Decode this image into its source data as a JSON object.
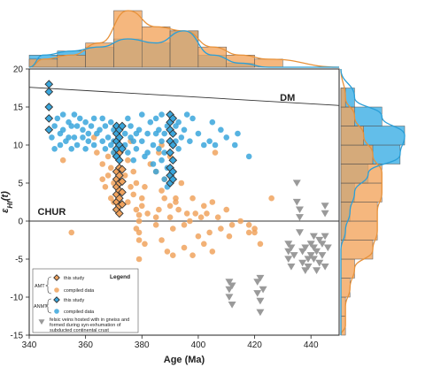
{
  "colors": {
    "orange": "#f0a35e",
    "orange_stroke": "#d98a3f",
    "blue": "#3aa6dc",
    "blue_stroke": "#1e86bf",
    "gray": "#9a9a9a",
    "hist_orange": "#f2a55e",
    "hist_blue": "#46b3e6",
    "curve_orange": "#e8923a",
    "curve_blue": "#2a9fd8"
  },
  "chart_data": {
    "type": "scatter",
    "xlabel": "Age (Ma)",
    "ylabel": "εHf(t)",
    "xlim": [
      340,
      450
    ],
    "ylim": [
      -15,
      20
    ],
    "x_ticks": [
      340,
      360,
      380,
      400,
      420,
      440
    ],
    "y_ticks": [
      -15,
      -10,
      -5,
      0,
      5,
      10,
      15,
      20
    ],
    "grid": false,
    "reference_lines": [
      {
        "label": "DM",
        "x": [
          340,
          450
        ],
        "y": [
          17.6,
          15.2
        ]
      },
      {
        "label": "CHUR",
        "x": [
          340,
          450
        ],
        "y": [
          0,
          0
        ]
      }
    ],
    "legend": {
      "title": "Legend",
      "placement": "bottom-left",
      "groups": [
        {
          "group": "AMT",
          "entries": [
            "this study",
            "compiled data"
          ]
        },
        {
          "group": "ANMT",
          "entries": [
            "this study",
            "compiled data"
          ]
        }
      ],
      "note": "felsic veins hosted with in gneiss and formed during syn-exhumation of subducted continental crust"
    },
    "series": [
      {
        "name": "AMT this study",
        "marker": "diamond",
        "color": "orange",
        "points": [
          [
            371,
            1.5
          ],
          [
            371,
            2.5
          ],
          [
            371,
            3.5
          ],
          [
            371,
            4.5
          ],
          [
            371,
            5.5
          ],
          [
            371,
            6.5
          ],
          [
            371,
            8.5
          ],
          [
            372,
            1.0
          ],
          [
            372,
            2.0
          ],
          [
            372,
            3.0
          ],
          [
            372,
            4.0
          ],
          [
            372,
            5.0
          ],
          [
            372,
            6.0
          ],
          [
            372,
            7.0
          ],
          [
            372,
            9.0
          ],
          [
            373,
            2.2
          ],
          [
            373,
            3.8
          ],
          [
            373,
            5.2
          ],
          [
            373,
            6.8
          ]
        ]
      },
      {
        "name": "AMT compiled data",
        "marker": "circle",
        "color": "orange",
        "points": [
          [
            366,
            7.5
          ],
          [
            366,
            5.5
          ],
          [
            367,
            4.5
          ],
          [
            368,
            6.0
          ],
          [
            368,
            8.5
          ],
          [
            369,
            3.0
          ],
          [
            369,
            7.0
          ],
          [
            370,
            2.5
          ],
          [
            370,
            5.0
          ],
          [
            370,
            9.0
          ],
          [
            374,
            6.0
          ],
          [
            375,
            8.0
          ],
          [
            375,
            2.5
          ],
          [
            376,
            4.5
          ],
          [
            376,
            10.5
          ],
          [
            377,
            3.5
          ],
          [
            377,
            6.5
          ],
          [
            378,
            1.5
          ],
          [
            378,
            -1.0
          ],
          [
            378,
            5.0
          ],
          [
            379,
            0.0
          ],
          [
            379,
            -2.5
          ],
          [
            379,
            -5.0
          ],
          [
            379,
            -1.5
          ],
          [
            379,
            0.8
          ],
          [
            380,
            2.0
          ],
          [
            380,
            3.0
          ],
          [
            381,
            4.5
          ],
          [
            381,
            -3.0
          ],
          [
            382,
            1.0
          ],
          [
            383,
            7.5
          ],
          [
            385,
            0.5
          ],
          [
            385,
            6.5
          ],
          [
            385,
            -0.5
          ],
          [
            386,
            1.5
          ],
          [
            386,
            9.0
          ],
          [
            387,
            4.0
          ],
          [
            387,
            -2.5
          ],
          [
            387,
            10.0
          ],
          [
            388,
            3.0
          ],
          [
            388,
            5.5
          ],
          [
            389,
            -4.0
          ],
          [
            390,
            2.0
          ],
          [
            390,
            0.5
          ],
          [
            390,
            8.5
          ],
          [
            391,
            -4.5
          ],
          [
            391,
            -1.0
          ],
          [
            392,
            2.5
          ],
          [
            392,
            3.0
          ],
          [
            393,
            1.5
          ],
          [
            394,
            5.0
          ],
          [
            395,
            -0.5
          ],
          [
            395,
            -3.5
          ],
          [
            396,
            1.0
          ],
          [
            397,
            0.0
          ],
          [
            398,
            3.0
          ],
          [
            398,
            -4.5
          ],
          [
            399,
            1.0
          ],
          [
            400,
            -2.0
          ],
          [
            401,
            0.5
          ],
          [
            402,
            2.0
          ],
          [
            402,
            -3.0
          ],
          [
            403,
            1.0
          ],
          [
            404,
            -1.5
          ],
          [
            405,
            -4.0
          ],
          [
            405,
            2.5
          ],
          [
            406,
            9.0
          ],
          [
            407,
            0.5
          ],
          [
            408,
            -1.0
          ],
          [
            410,
            1.5
          ],
          [
            411,
            -2.0
          ],
          [
            412,
            -0.5
          ],
          [
            415,
            0.0
          ],
          [
            418,
            -0.5
          ],
          [
            418,
            -1.5
          ],
          [
            420,
            -1.5
          ],
          [
            420,
            -1.0
          ],
          [
            422,
            -3.0
          ],
          [
            426,
            3.0
          ],
          [
            355,
            -1.5
          ],
          [
            352,
            8.0
          ],
          [
            363,
            11.0
          ],
          [
            364,
            9.0
          ]
        ]
      },
      {
        "name": "ANMT this study",
        "marker": "diamond",
        "color": "blue",
        "points": [
          [
            347,
            18.0
          ],
          [
            347,
            17.0
          ],
          [
            347,
            15.0
          ],
          [
            347,
            13.5
          ],
          [
            347,
            12.0
          ],
          [
            371,
            12.5
          ],
          [
            371,
            11.5
          ],
          [
            371,
            10.5
          ],
          [
            371,
            9.5
          ],
          [
            371,
            8.5
          ],
          [
            372,
            12.0
          ],
          [
            372,
            11.0
          ],
          [
            372,
            10.0
          ],
          [
            372,
            8.0
          ],
          [
            373,
            12.5
          ],
          [
            373,
            9.5
          ],
          [
            390,
            14.0
          ],
          [
            390,
            13.0
          ],
          [
            390,
            12.0
          ],
          [
            390,
            10.5
          ],
          [
            390,
            9.0
          ],
          [
            390,
            7.0
          ],
          [
            390,
            6.0
          ],
          [
            390,
            5.0
          ],
          [
            391,
            13.5
          ],
          [
            391,
            11.5
          ],
          [
            391,
            10.0
          ],
          [
            391,
            8.0
          ],
          [
            391,
            6.5
          ],
          [
            391,
            5.5
          ]
        ]
      },
      {
        "name": "ANMT compiled data",
        "marker": "circle",
        "color": "blue",
        "points": [
          [
            348,
            11.0
          ],
          [
            349,
            12.5
          ],
          [
            349,
            9.5
          ],
          [
            350,
            13.5
          ],
          [
            351,
            11.5
          ],
          [
            351,
            10.0
          ],
          [
            352,
            12.0
          ],
          [
            352,
            14.0
          ],
          [
            353,
            10.5
          ],
          [
            354,
            13.0
          ],
          [
            354,
            11.0
          ],
          [
            355,
            12.5
          ],
          [
            355,
            9.5
          ],
          [
            356,
            11.0
          ],
          [
            356,
            14.0
          ],
          [
            357,
            12.5
          ],
          [
            357,
            10.0
          ],
          [
            358,
            13.5
          ],
          [
            359,
            11.0
          ],
          [
            359,
            12.0
          ],
          [
            360,
            9.5
          ],
          [
            360,
            13.0
          ],
          [
            361,
            11.5
          ],
          [
            361,
            10.5
          ],
          [
            362,
            12.5
          ],
          [
            363,
            10.0
          ],
          [
            363,
            13.5
          ],
          [
            364,
            11.5
          ],
          [
            365,
            12.0
          ],
          [
            366,
            13.5
          ],
          [
            366,
            10.5
          ],
          [
            367,
            9.5
          ],
          [
            367,
            12.5
          ],
          [
            368,
            11.0
          ],
          [
            369,
            10.0
          ],
          [
            369,
            13.0
          ],
          [
            370,
            12.0
          ],
          [
            370,
            10.5
          ],
          [
            370,
            9.0
          ],
          [
            374,
            11.5
          ],
          [
            374,
            10.0
          ],
          [
            375,
            13.5
          ],
          [
            375,
            9.0
          ],
          [
            376,
            11.0
          ],
          [
            376,
            12.5
          ],
          [
            377,
            10.5
          ],
          [
            377,
            8.0
          ],
          [
            378,
            11.5
          ],
          [
            378,
            9.5
          ],
          [
            379,
            12.0
          ],
          [
            380,
            10.5
          ],
          [
            380,
            14.0
          ],
          [
            381,
            8.5
          ],
          [
            382,
            11.5
          ],
          [
            382,
            9.0
          ],
          [
            383,
            13.0
          ],
          [
            384,
            10.0
          ],
          [
            384,
            7.5
          ],
          [
            385,
            11.5
          ],
          [
            385,
            13.5
          ],
          [
            385,
            6.5
          ],
          [
            386,
            9.5
          ],
          [
            386,
            12.0
          ],
          [
            387,
            10.5
          ],
          [
            387,
            8.0
          ],
          [
            387,
            14.0
          ],
          [
            388,
            11.5
          ],
          [
            388,
            9.0
          ],
          [
            388,
            5.5
          ],
          [
            389,
            12.5
          ],
          [
            389,
            7.0
          ],
          [
            389,
            4.5
          ],
          [
            392,
            10.5
          ],
          [
            392,
            12.5
          ],
          [
            393,
            9.5
          ],
          [
            393,
            13.0
          ],
          [
            394,
            11.0
          ],
          [
            395,
            12.0
          ],
          [
            396,
            14.0
          ],
          [
            397,
            10.5
          ],
          [
            398,
            13.5
          ],
          [
            400,
            11.5
          ],
          [
            402,
            10.0
          ],
          [
            404,
            10.5
          ],
          [
            405,
            13.0
          ],
          [
            406,
            10.0
          ],
          [
            408,
            12.0
          ],
          [
            410,
            11.0
          ],
          [
            413,
            10.0
          ],
          [
            414,
            11.5
          ],
          [
            418,
            8.5
          ]
        ]
      },
      {
        "name": "felsic veins",
        "marker": "triangle-down",
        "color": "gray",
        "points": [
          [
            411,
            -8.0
          ],
          [
            411,
            -9.0
          ],
          [
            411,
            -10.0
          ],
          [
            412,
            -8.5
          ],
          [
            412,
            -11.0
          ],
          [
            421,
            -8.0
          ],
          [
            421,
            -9.5
          ],
          [
            422,
            -7.5
          ],
          [
            422,
            -10.5
          ],
          [
            422,
            -12.0
          ],
          [
            423,
            -9.0
          ],
          [
            432,
            -3.0
          ],
          [
            432,
            -4.0
          ],
          [
            432,
            -5.0
          ],
          [
            433,
            -3.5
          ],
          [
            433,
            -6.0
          ],
          [
            434,
            -4.5
          ],
          [
            437,
            -4.0
          ],
          [
            437,
            -5.5
          ],
          [
            438,
            -3.5
          ],
          [
            438,
            -6.5
          ],
          [
            439,
            -5.0
          ],
          [
            439,
            -6.0
          ],
          [
            440,
            -3.0
          ],
          [
            440,
            -4.5
          ],
          [
            441,
            -2.0
          ],
          [
            441,
            -3.5
          ],
          [
            441,
            -5.0
          ],
          [
            442,
            -4.0
          ],
          [
            442,
            -6.5
          ],
          [
            443,
            -2.5
          ],
          [
            443,
            -5.5
          ],
          [
            444,
            -3.0
          ],
          [
            444,
            -4.5
          ],
          [
            445,
            -2.0
          ],
          [
            445,
            -6.0
          ],
          [
            446,
            -3.5
          ],
          [
            445,
            1.0
          ],
          [
            445,
            2.0
          ],
          [
            436,
            0.5
          ],
          [
            436,
            1.5
          ],
          [
            435,
            2.5
          ],
          [
            435,
            5.0
          ],
          [
            436,
            -1.5
          ]
        ]
      }
    ],
    "marginal_top": {
      "type": "histogram",
      "bins_age": [
        340,
        350,
        360,
        370,
        380,
        390,
        400,
        410,
        420,
        430
      ],
      "orange_counts": [
        2,
        3,
        6,
        14,
        10,
        9,
        5,
        3,
        2
      ],
      "blue_counts": [
        3,
        4,
        5,
        7,
        6,
        9,
        3,
        1,
        0
      ]
    },
    "marginal_right": {
      "type": "histogram",
      "bins_ehf": [
        -15,
        -12.5,
        -10,
        -7.5,
        -5,
        -2.5,
        0,
        2.5,
        5,
        7.5,
        10,
        12.5,
        15,
        17.5
      ],
      "orange_counts": [
        1,
        1,
        2,
        3,
        7,
        8,
        8,
        9,
        9,
        7,
        5,
        3,
        1
      ],
      "blue_counts": [
        0,
        0,
        0,
        0,
        0,
        1,
        2,
        3,
        6,
        13,
        14,
        9,
        3
      ]
    }
  },
  "axis_titles": {
    "x": "Age (Ma)",
    "y_main": "ε",
    "y_sub": "Hf",
    "y_tail": "(t)"
  },
  "labels": {
    "dm": "DM",
    "chur": "CHUR"
  },
  "legend": {
    "title": "Legend",
    "amt": "AMT",
    "anmt": "ANMT",
    "this_study": "this study",
    "compiled": "compiled data",
    "note_line1": "felsic veins hosted with in gneiss and",
    "note_line2": "formed during syn-exhumation of",
    "note_line3": "subducted continental crust"
  }
}
